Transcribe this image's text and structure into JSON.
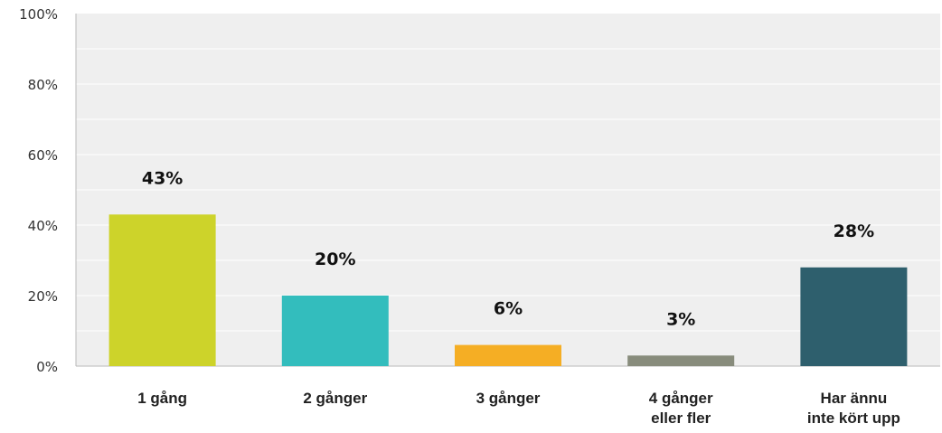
{
  "chart_data": {
    "type": "bar",
    "title": "",
    "xlabel": "",
    "ylabel": "",
    "categories": [
      [
        "1 gång"
      ],
      [
        "2 gånger"
      ],
      [
        "3 gånger"
      ],
      [
        "4 gånger",
        "eller fler"
      ],
      [
        "Har ännu",
        "inte kört upp"
      ]
    ],
    "values": [
      43,
      20,
      6,
      3,
      28
    ],
    "data_labels": [
      "43%",
      "20%",
      "6%",
      "3%",
      "28%"
    ],
    "colors": [
      "#cdd32a",
      "#33bdbd",
      "#f5ae24",
      "#888c7c",
      "#2e5f6d"
    ],
    "ylim": [
      0,
      100
    ],
    "y_ticks": [
      0,
      20,
      40,
      60,
      80,
      100
    ],
    "y_tick_labels": [
      "0%",
      "20%",
      "40%",
      "60%",
      "80%",
      "100%"
    ],
    "grid": true,
    "plot_background": "#efefef",
    "grid_color": "#ffffff",
    "axis_color": "#b9b9b9",
    "legend": "none"
  }
}
